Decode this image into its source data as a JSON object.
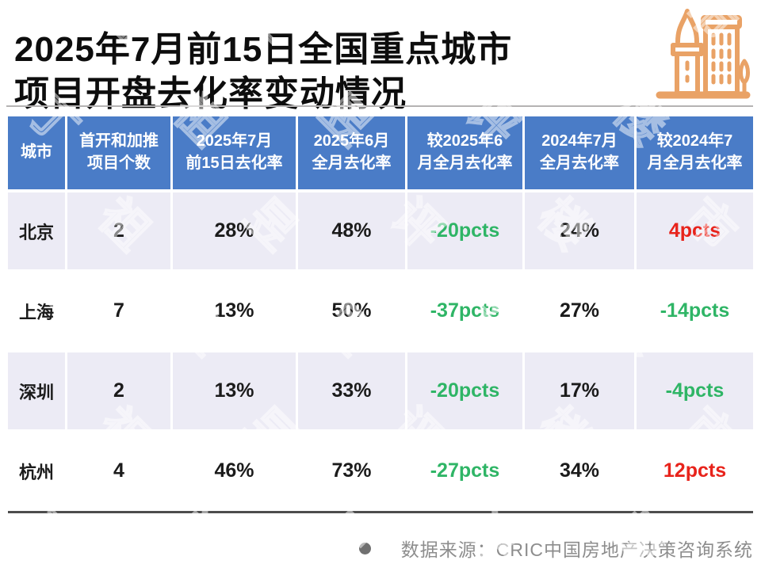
{
  "title": {
    "line1": "2025年7月前15日全国重点城市",
    "line2": "项目开盘去化率变动情况"
  },
  "watermark_text": "丁祖昱评楼市",
  "footer": {
    "source_text": "数据来源：CRIC中国房地产决策咨询系统"
  },
  "colors": {
    "header_bg": "#4a7cc7",
    "row_alt_bg": "#ecebf5",
    "positive_red": "#e8231b",
    "negative_green": "#2fb566",
    "icon_orange": "#e9a266",
    "footer_gray": "#8d8d8d"
  },
  "table": {
    "headers": [
      {
        "l1": "城市",
        "l2": ""
      },
      {
        "l1": "首开和加推",
        "l2": "项目个数"
      },
      {
        "l1": "2025年7月",
        "l2": "前15日去化率"
      },
      {
        "l1": "2025年6月",
        "l2": "全月去化率"
      },
      {
        "l1": "较2025年6",
        "l2": "月全月去化率"
      },
      {
        "l1": "2024年7月",
        "l2": "全月去化率"
      },
      {
        "l1": "较2024年7",
        "l2": "月全月去化率"
      }
    ],
    "rows": [
      {
        "city": "北京",
        "projects": "2",
        "rate_jul15": "28%",
        "rate_jun": "48%",
        "vs_jun": "-20pcts",
        "vs_jun_tone": "green",
        "rate_jul2024": "24%",
        "vs_jul2024": "4pcts",
        "vs_jul2024_tone": "red"
      },
      {
        "city": "上海",
        "projects": "7",
        "rate_jul15": "13%",
        "rate_jun": "50%",
        "vs_jun": "-37pcts",
        "vs_jun_tone": "green",
        "rate_jul2024": "27%",
        "vs_jul2024": "-14pcts",
        "vs_jul2024_tone": "green"
      },
      {
        "city": "深圳",
        "projects": "2",
        "rate_jul15": "13%",
        "rate_jun": "33%",
        "vs_jun": "-20pcts",
        "vs_jun_tone": "green",
        "rate_jul2024": "17%",
        "vs_jul2024": "-4pcts",
        "vs_jul2024_tone": "green"
      },
      {
        "city": "杭州",
        "projects": "4",
        "rate_jul15": "46%",
        "rate_jun": "73%",
        "vs_jun": "-27pcts",
        "vs_jun_tone": "green",
        "rate_jul2024": "34%",
        "vs_jul2024": "12pcts",
        "vs_jul2024_tone": "red"
      }
    ]
  },
  "chart_data": {
    "type": "table",
    "title": "2025年7月前15日全国重点城市项目开盘去化率变动情况",
    "columns": [
      "城市",
      "首开和加推项目个数",
      "2025年7月前15日去化率",
      "2025年6月全月去化率",
      "较2025年6月全月去化率",
      "2024年7月全月去化率",
      "较2024年7月全月去化率"
    ],
    "rows": [
      [
        "北京",
        2,
        "28%",
        "48%",
        "-20pcts",
        "24%",
        "4pcts"
      ],
      [
        "上海",
        7,
        "13%",
        "50%",
        "-37pcts",
        "27%",
        "-14pcts"
      ],
      [
        "深圳",
        2,
        "13%",
        "33%",
        "-20pcts",
        "17%",
        "-4pcts"
      ],
      [
        "杭州",
        4,
        "46%",
        "73%",
        "-27pcts",
        "34%",
        "12pcts"
      ]
    ],
    "source": "数据来源：CRIC中国房地产决策咨询系统"
  }
}
